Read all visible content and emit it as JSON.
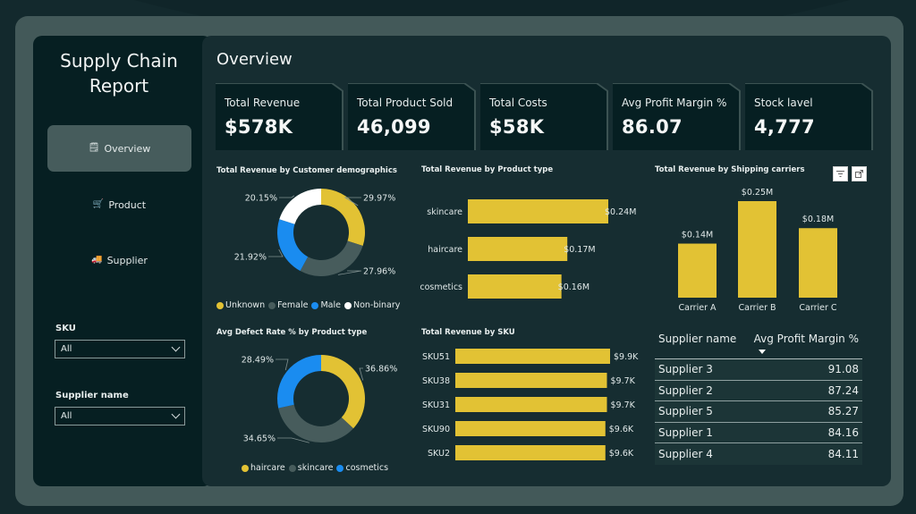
{
  "app": {
    "title": "Supply Chain Report"
  },
  "sidebar": {
    "nav": [
      {
        "label": "Overview",
        "icon": "document-icon",
        "glyph": "🗒",
        "active": true
      },
      {
        "label": "Product",
        "icon": "cart-icon",
        "glyph": "🛒",
        "active": false
      },
      {
        "label": "Supplier",
        "icon": "truck-icon",
        "glyph": "🚚",
        "active": false
      }
    ],
    "filters": [
      {
        "label": "SKU",
        "value": "All"
      },
      {
        "label": "Supplier name",
        "value": "All"
      }
    ]
  },
  "page": {
    "title": "Overview"
  },
  "kpis": [
    {
      "label": "Total Revenue",
      "value": "$578K"
    },
    {
      "label": "Total Product Sold",
      "value": "46,099"
    },
    {
      "label": "Total Costs",
      "value": "$58K"
    },
    {
      "label": "Avg Profit Margin %",
      "value": "86.07"
    },
    {
      "label": "Stock lavel",
      "value": "4,777"
    }
  ],
  "colors": {
    "yellow": "#e2c234",
    "gray": "#475c5c",
    "blue": "#1a8cf0",
    "white": "#ffffff"
  },
  "chart_data": [
    {
      "id": "demographics",
      "type": "pie",
      "title": "Total Revenue by Customer demographics",
      "categories": [
        "Unknown",
        "Female",
        "Male",
        "Non-binary"
      ],
      "values": [
        29.97,
        27.96,
        21.92,
        20.15
      ],
      "labels": [
        "29.97%",
        "27.96%",
        "21.92%",
        "20.15%"
      ],
      "colors": [
        "#e2c234",
        "#475c5c",
        "#1a8cf0",
        "#ffffff"
      ],
      "legend": "bottom"
    },
    {
      "id": "defect",
      "type": "pie",
      "title": "Avg Defect Rate % by Product type",
      "categories": [
        "haircare",
        "skincare",
        "cosmetics"
      ],
      "values": [
        36.86,
        34.65,
        28.49
      ],
      "labels": [
        "36.86%",
        "34.65%",
        "28.49%"
      ],
      "colors": [
        "#e2c234",
        "#475c5c",
        "#1a8cf0"
      ],
      "legend": "bottom"
    },
    {
      "id": "product_type",
      "type": "bar",
      "orientation": "horizontal",
      "title": "Total Revenue by Product type",
      "categories": [
        "skincare",
        "haircare",
        "cosmetics"
      ],
      "values": [
        0.24,
        0.17,
        0.16
      ],
      "labels": [
        "$0.24M",
        "$0.17M",
        "$0.16M"
      ],
      "units": "$M"
    },
    {
      "id": "sku",
      "type": "bar",
      "orientation": "horizontal",
      "title": "Total Revenue by SKU",
      "categories": [
        "SKU51",
        "SKU38",
        "SKU31",
        "SKU90",
        "SKU2"
      ],
      "values": [
        9.9,
        9.7,
        9.7,
        9.6,
        9.6
      ],
      "labels": [
        "$9.9K",
        "$9.7K",
        "$9.7K",
        "$9.6K",
        "$9.6K"
      ],
      "units": "$K"
    },
    {
      "id": "carriers",
      "type": "bar",
      "orientation": "vertical",
      "title": "Total Revenue by Shipping carriers",
      "categories": [
        "Carrier A",
        "Carrier B",
        "Carrier C"
      ],
      "values": [
        0.14,
        0.25,
        0.18
      ],
      "labels": [
        "$0.14M",
        "$0.25M",
        "$0.18M"
      ],
      "units": "$M"
    },
    {
      "id": "supplier_table",
      "type": "table",
      "columns": [
        "Supplier name",
        "Avg Profit Margin %"
      ],
      "sort": "Avg Profit Margin % descending",
      "rows": [
        [
          "Supplier 3",
          "91.08"
        ],
        [
          "Supplier 2",
          "87.24"
        ],
        [
          "Supplier 5",
          "85.27"
        ],
        [
          "Supplier 1",
          "84.16"
        ],
        [
          "Supplier 4",
          "84.11"
        ]
      ]
    }
  ],
  "visual_header": {
    "filter_icon": "filter-icon",
    "focus_icon": "focus-mode-icon"
  }
}
